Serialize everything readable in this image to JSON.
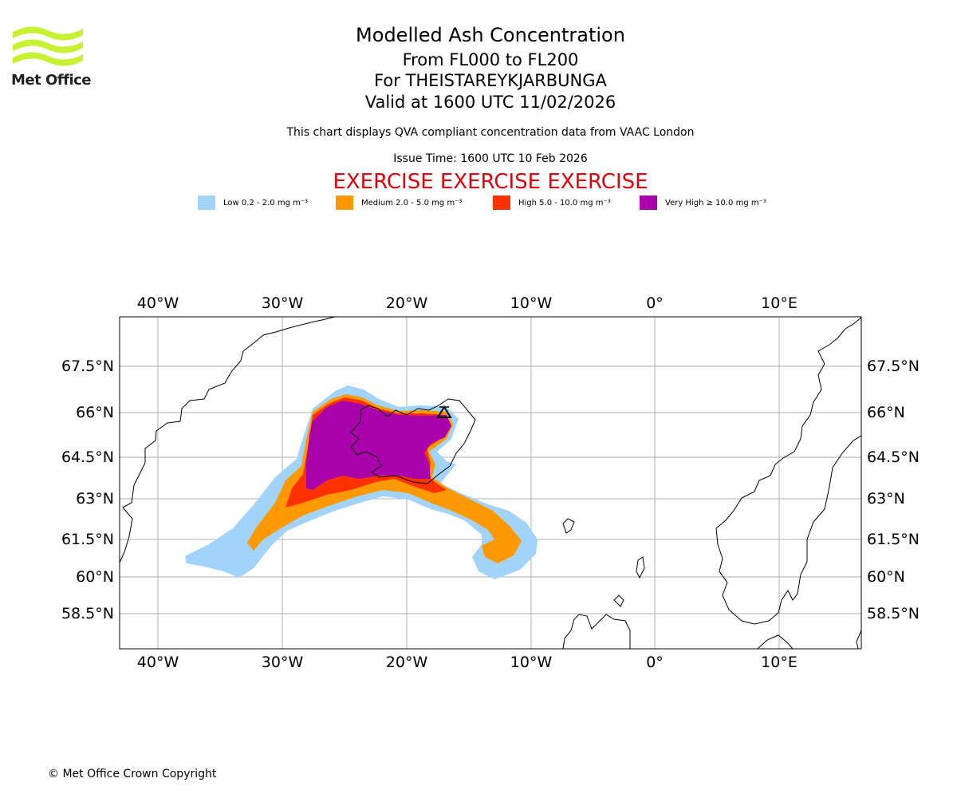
{
  "logo": {
    "text": "Met Office"
  },
  "header": {
    "title": "Modelled Ash Concentration",
    "flight_levels": "From FL000 to FL200",
    "volcano": "For THEISTAREYKJARBUNGA",
    "valid": "Valid at 1600 UTC 11/02/2026",
    "subtitle": "This chart displays QVA compliant concentration data from VAAC London",
    "issue_time": "Issue Time: 1600 UTC 10 Feb 2026",
    "exercise": "EXERCISE EXERCISE EXERCISE"
  },
  "legend": [
    {
      "label": "Low 0.2 - 2.0 mg m⁻³",
      "color": "#a2d4fb"
    },
    {
      "label": "Medium 2.0 - 5.0 mg m⁻³",
      "color": "#fe9900"
    },
    {
      "label": "High 5.0 - 10.0 mg m⁻³",
      "color": "#fe3200"
    },
    {
      "label": "Very High  ≥  10.0 mg m⁻³",
      "color": "#aa02aa"
    }
  ],
  "map": {
    "lon_ticks": [
      "40°W",
      "30°W",
      "20°W",
      "10°W",
      "0°",
      "10°E"
    ],
    "lat_ticks": [
      "67.5°N",
      "66°N",
      "64.5°N",
      "63°N",
      "61.5°N",
      "60°N",
      "58.5°N"
    ],
    "volcano_marker": "volcano-triangle"
  },
  "footer": {
    "copyright": "© Met Office Crown Copyright"
  }
}
